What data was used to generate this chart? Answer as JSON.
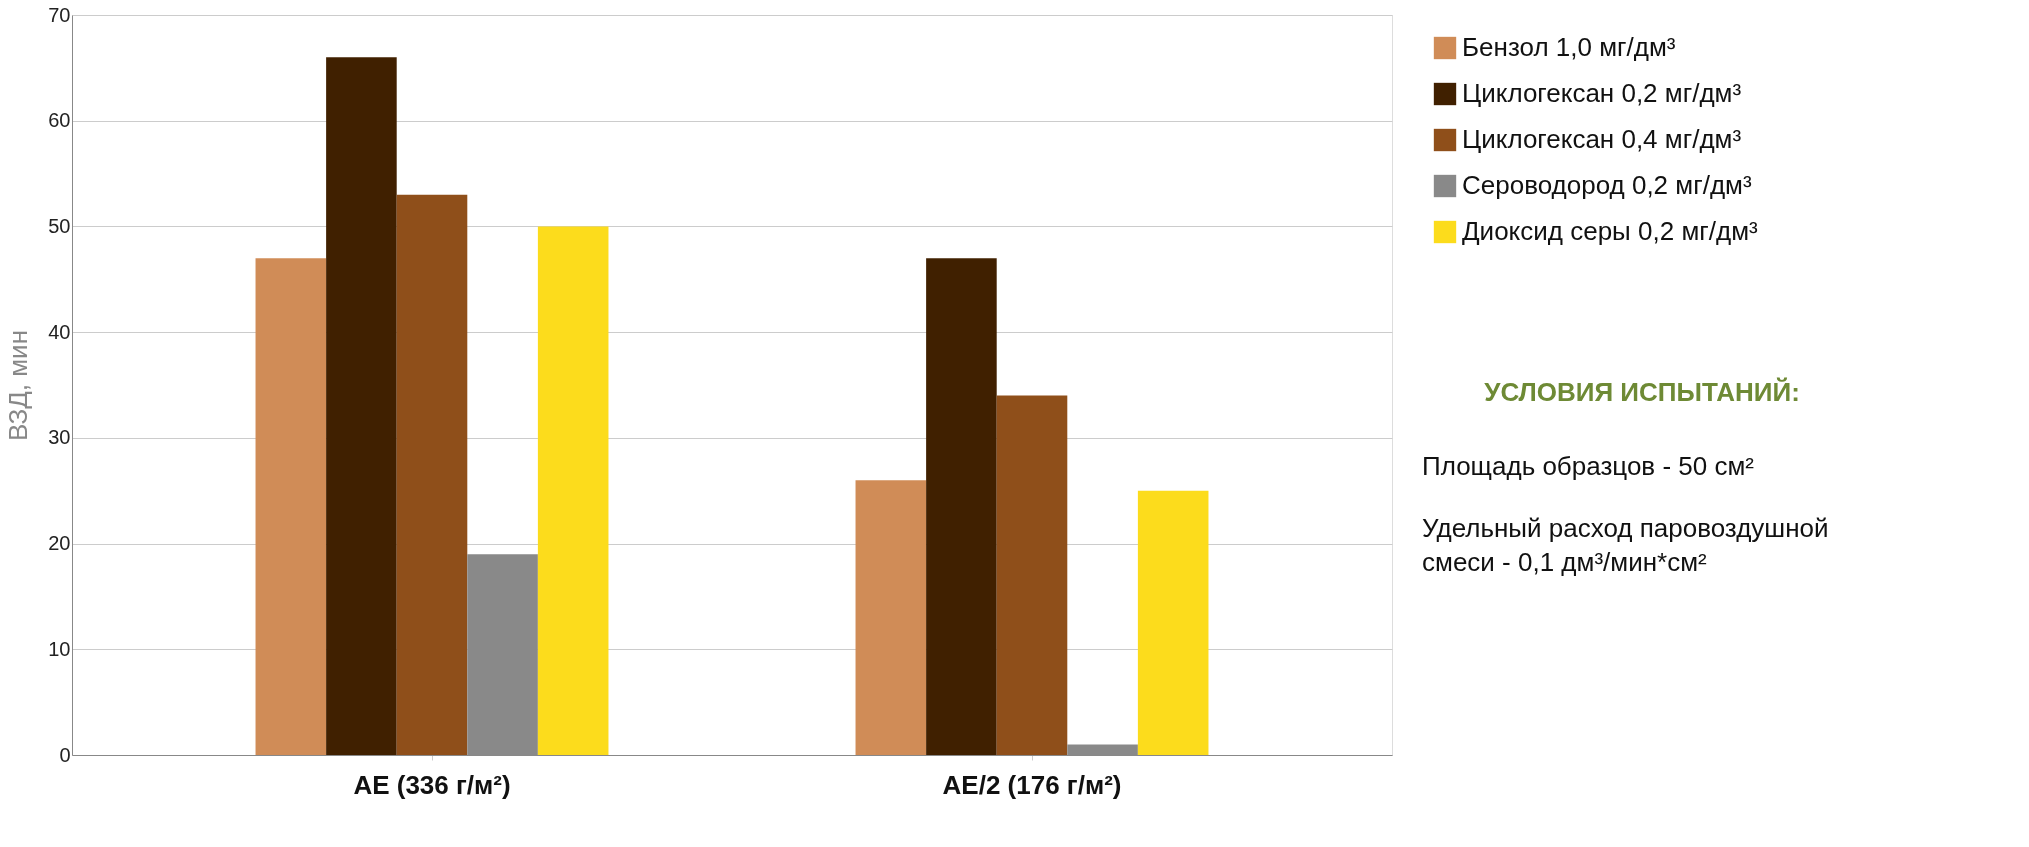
{
  "chart_data": {
    "type": "bar",
    "ylabel": "ВЗД, мин",
    "categories": [
      "АЕ (336 г/м²)",
      "АЕ/2 (176 г/м²)"
    ],
    "series": [
      {
        "name": "Бензол 1,0 мг/дм³",
        "color": "#d08c57",
        "values": [
          47,
          26
        ]
      },
      {
        "name": "Циклогексан 0,2 мг/дм³",
        "color": "#402000",
        "values": [
          66,
          47
        ]
      },
      {
        "name": "Циклогексан 0,4 мг/дм³",
        "color": "#8f4f1a",
        "values": [
          53,
          34
        ]
      },
      {
        "name": "Сероводород 0,2 мг/дм³",
        "color": "#898989",
        "values": [
          19,
          1
        ]
      },
      {
        "name": "Диоксид серы 0,2 мг/дм³",
        "color": "#fcdc1c",
        "values": [
          50,
          25
        ]
      }
    ],
    "ylim": [
      0,
      70
    ],
    "yticks": [
      0,
      10,
      20,
      30,
      40,
      50,
      60,
      70
    ],
    "grid": "y",
    "legend": "right",
    "annotations": [
      "УСЛОВИЯ ИСПЫТАНИЙ:",
      "Площадь образцов - 50 см²",
      "Удельный расход паровоздушной смеси - 0,1 дм³/мин*см²"
    ]
  }
}
